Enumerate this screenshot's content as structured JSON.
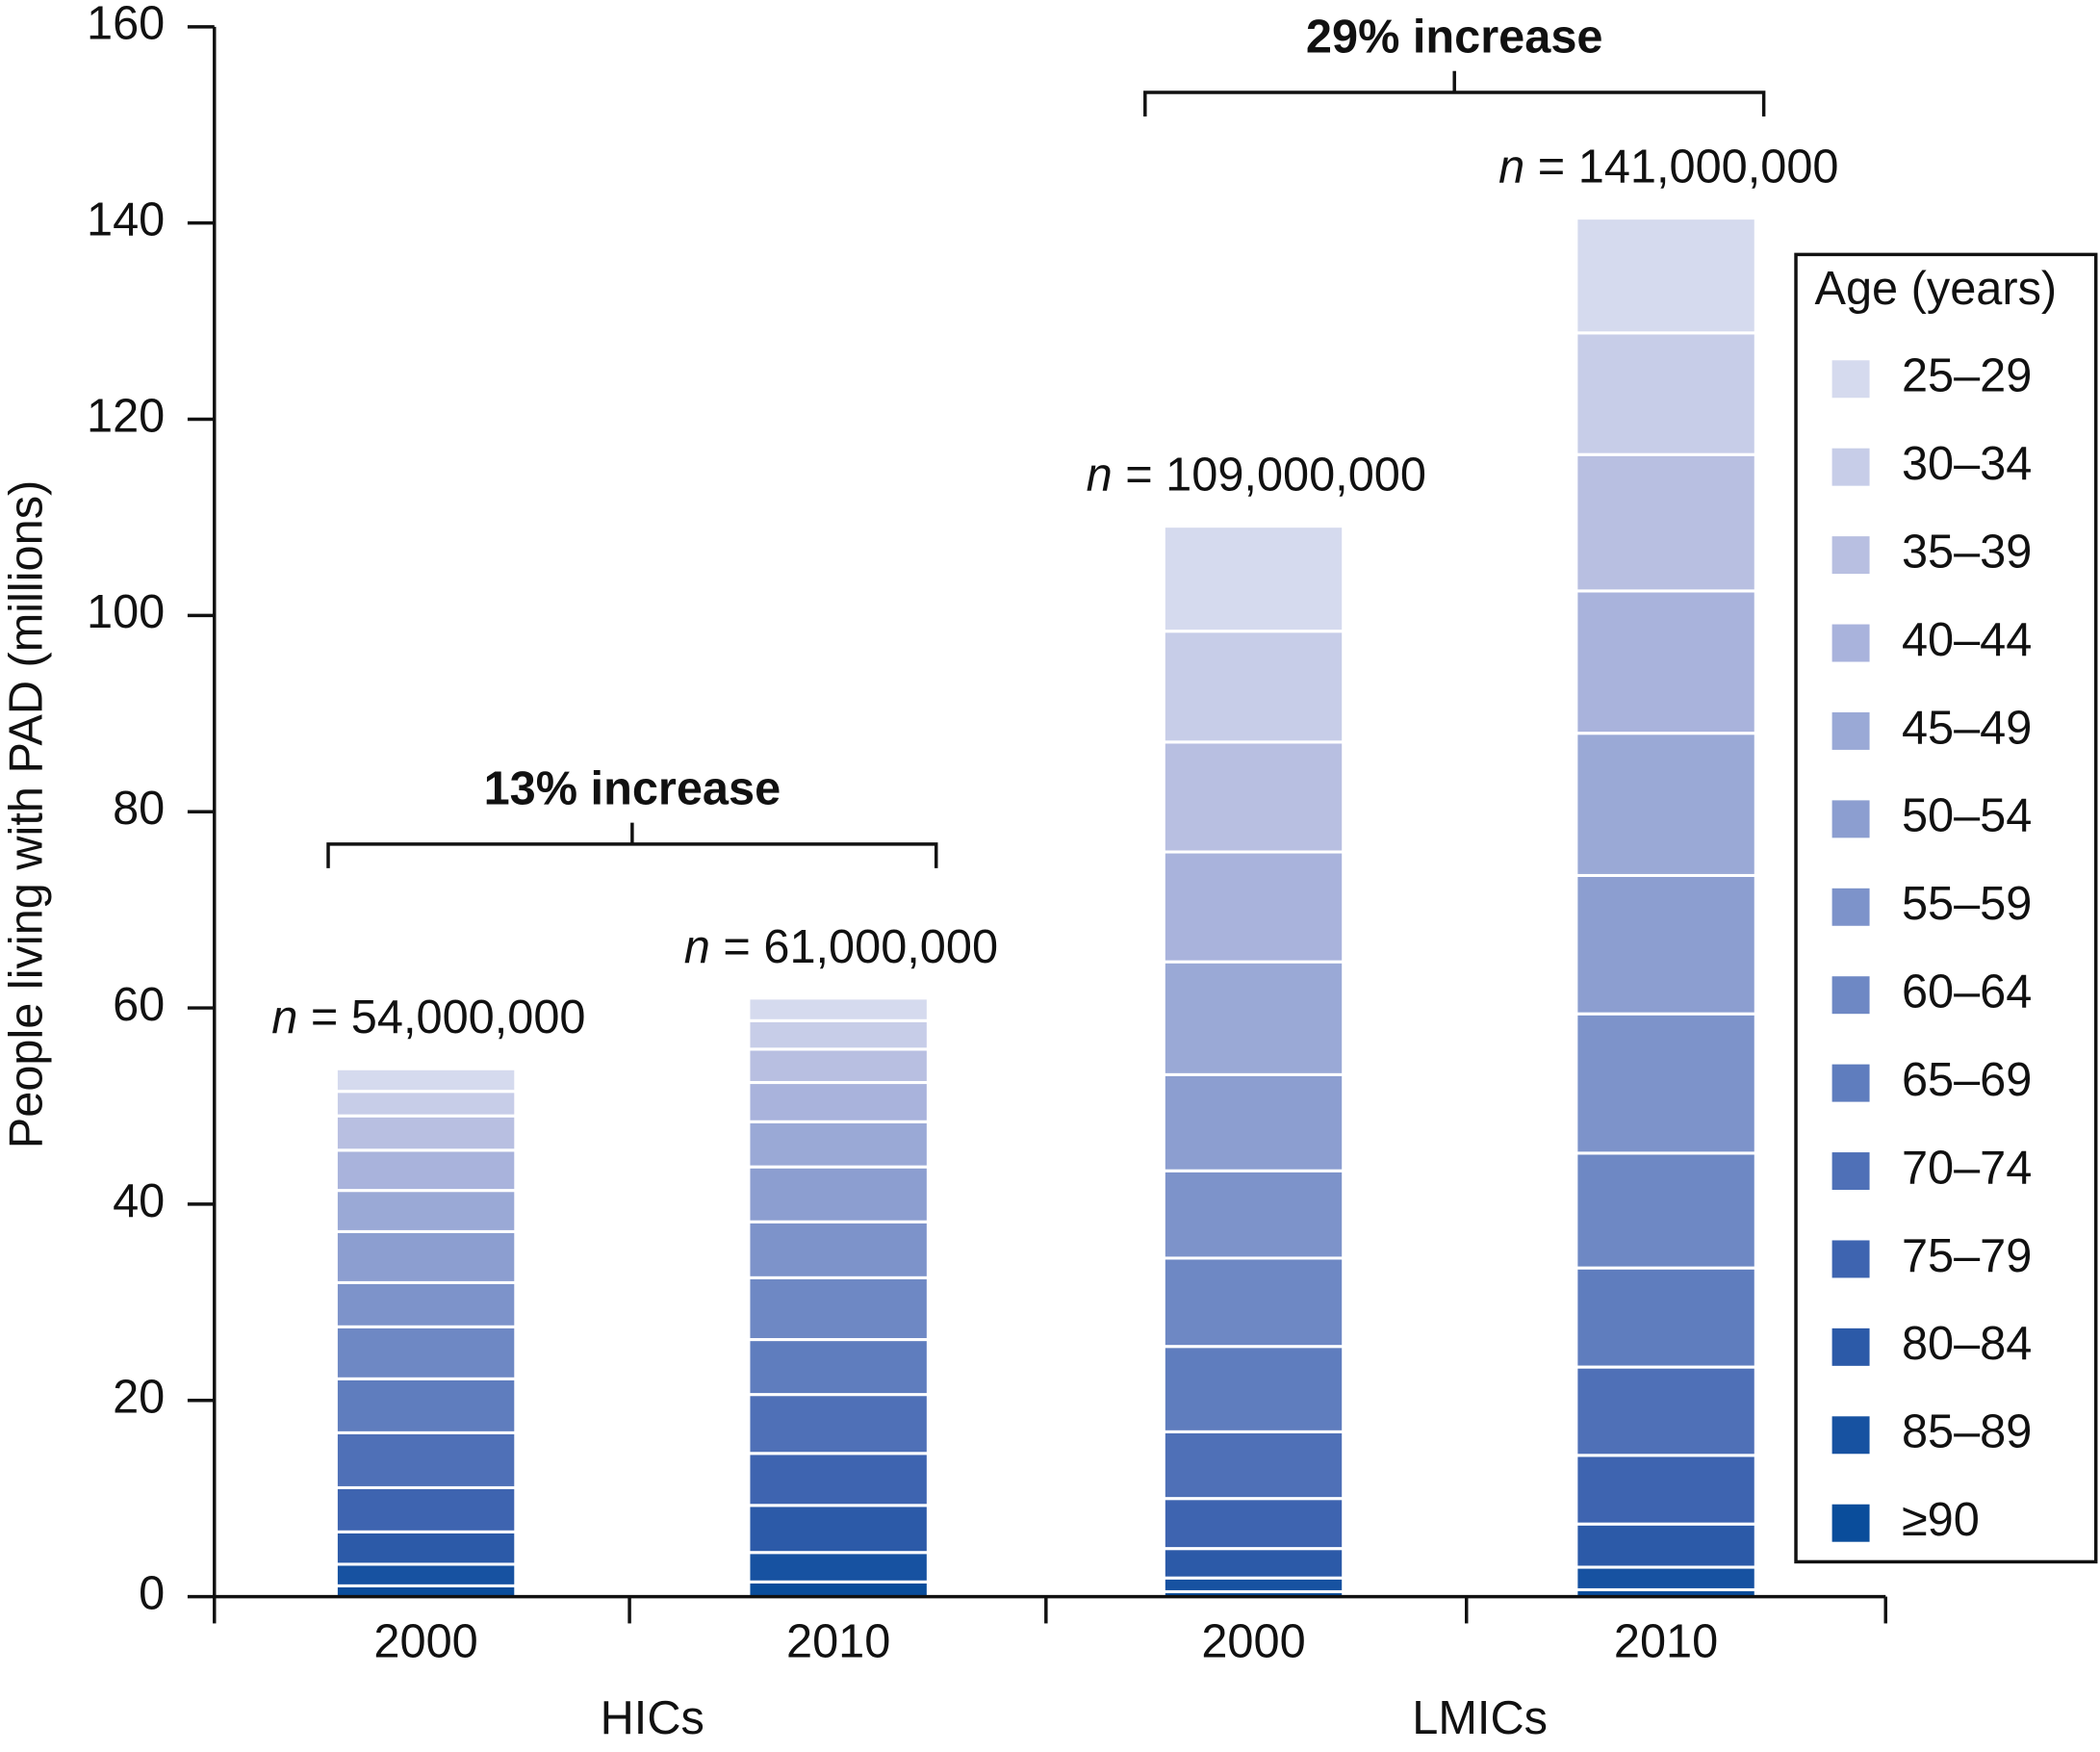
{
  "chart_data": {
    "type": "stacked_bar",
    "y_label": "People living with PAD (millions)",
    "categories": [
      "2000",
      "2010",
      "2000",
      "2010"
    ],
    "groups": [
      {
        "name": "HICs",
        "change_label": "13% increase"
      },
      {
        "name": "LMICs",
        "change_label": "29% increase"
      }
    ],
    "total_labels": [
      "n = 54,000,000",
      "n = 61,000,000",
      "n = 109,000,000",
      "n = 141,000,000"
    ],
    "legend_title": "Age (years)",
    "legend_position": "right",
    "ylim": [
      0,
      160
    ],
    "yticks": [
      0,
      20,
      40,
      60,
      80,
      100,
      120,
      140,
      160
    ],
    "series": [
      {
        "name": "25–29",
        "color": "#d5daee",
        "values": [
          2.3,
          2.3,
          10.7,
          11.7
        ]
      },
      {
        "name": "30–34",
        "color": "#c7cde8",
        "values": [
          2.5,
          2.9,
          11.3,
          12.4
        ]
      },
      {
        "name": "35–39",
        "color": "#b8bfe1",
        "values": [
          3.5,
          3.4,
          11.2,
          13.9
        ]
      },
      {
        "name": "40–44",
        "color": "#a9b3dc",
        "values": [
          4.1,
          4.0,
          11.2,
          14.5
        ]
      },
      {
        "name": "45–49",
        "color": "#9aa9d6",
        "values": [
          4.2,
          4.6,
          11.5,
          14.5
        ]
      },
      {
        "name": "50–54",
        "color": "#8c9ed0",
        "values": [
          5.2,
          5.6,
          9.8,
          14.1
        ]
      },
      {
        "name": "55–59",
        "color": "#7d93ca",
        "values": [
          4.5,
          5.7,
          8.9,
          14.2
        ]
      },
      {
        "name": "60–64",
        "color": "#6e88c4",
        "values": [
          5.3,
          6.3,
          9.0,
          11.7
        ]
      },
      {
        "name": "65–69",
        "color": "#5f7dbe",
        "values": [
          5.5,
          5.6,
          8.7,
          10.1
        ]
      },
      {
        "name": "70–74",
        "color": "#4f70b7",
        "values": [
          5.6,
          6.0,
          6.8,
          9.0
        ]
      },
      {
        "name": "75–79",
        "color": "#3e64b0",
        "values": [
          4.5,
          5.3,
          5.1,
          7.0
        ]
      },
      {
        "name": "80–84",
        "color": "#2c5aa8",
        "values": [
          3.3,
          4.8,
          3.0,
          4.4
        ]
      },
      {
        "name": "85–89",
        "color": "#1752a1",
        "values": [
          2.2,
          3.0,
          1.4,
          2.3
        ]
      },
      {
        "name": "≥90",
        "color": "#0a4d9b",
        "values": [
          1.1,
          1.5,
          0.5,
          0.7
        ]
      }
    ]
  }
}
